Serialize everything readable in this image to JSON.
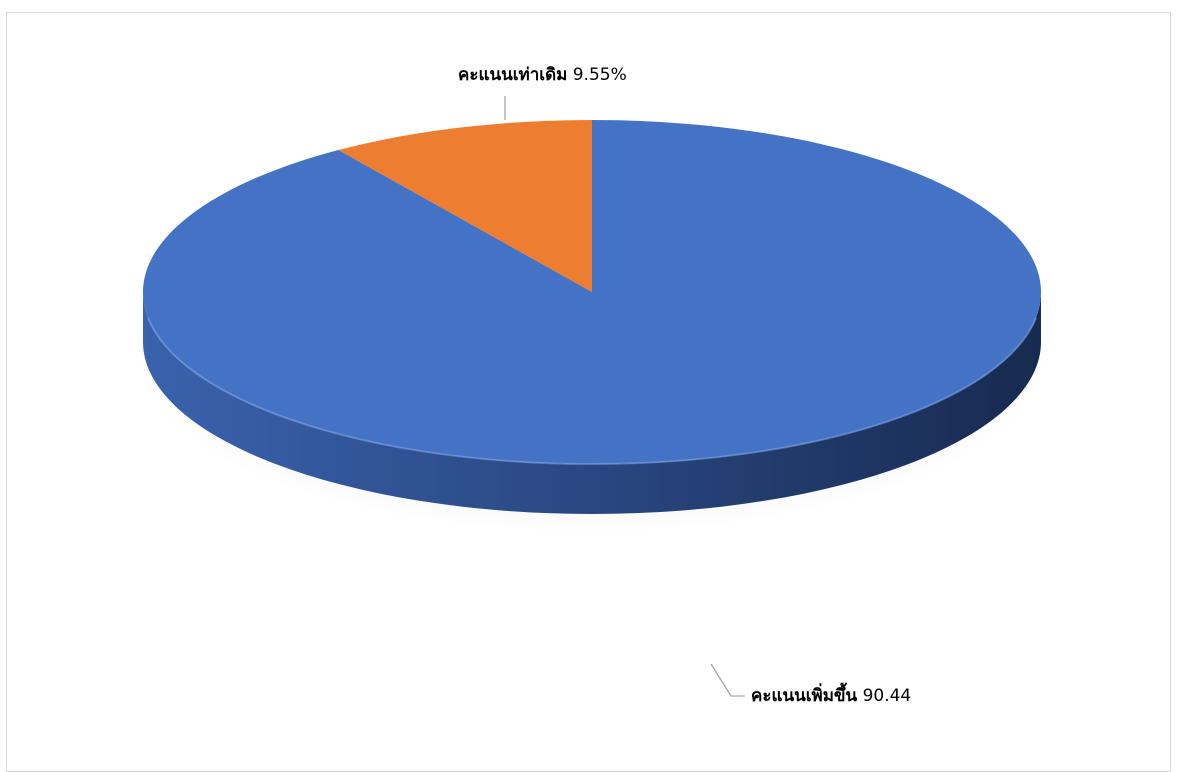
{
  "chart_data": {
    "type": "pie",
    "style": "3d",
    "title": "",
    "slices": [
      {
        "label": "คะแนนเพิ่มขึ้น",
        "value": 90.44,
        "display_value": "90.44",
        "color": "#4472c4"
      },
      {
        "label": "คะแนนเท่าเดิม",
        "value": 9.55,
        "display_value": "9.55%",
        "color": "#ed7d31"
      }
    ],
    "legend": "none"
  }
}
